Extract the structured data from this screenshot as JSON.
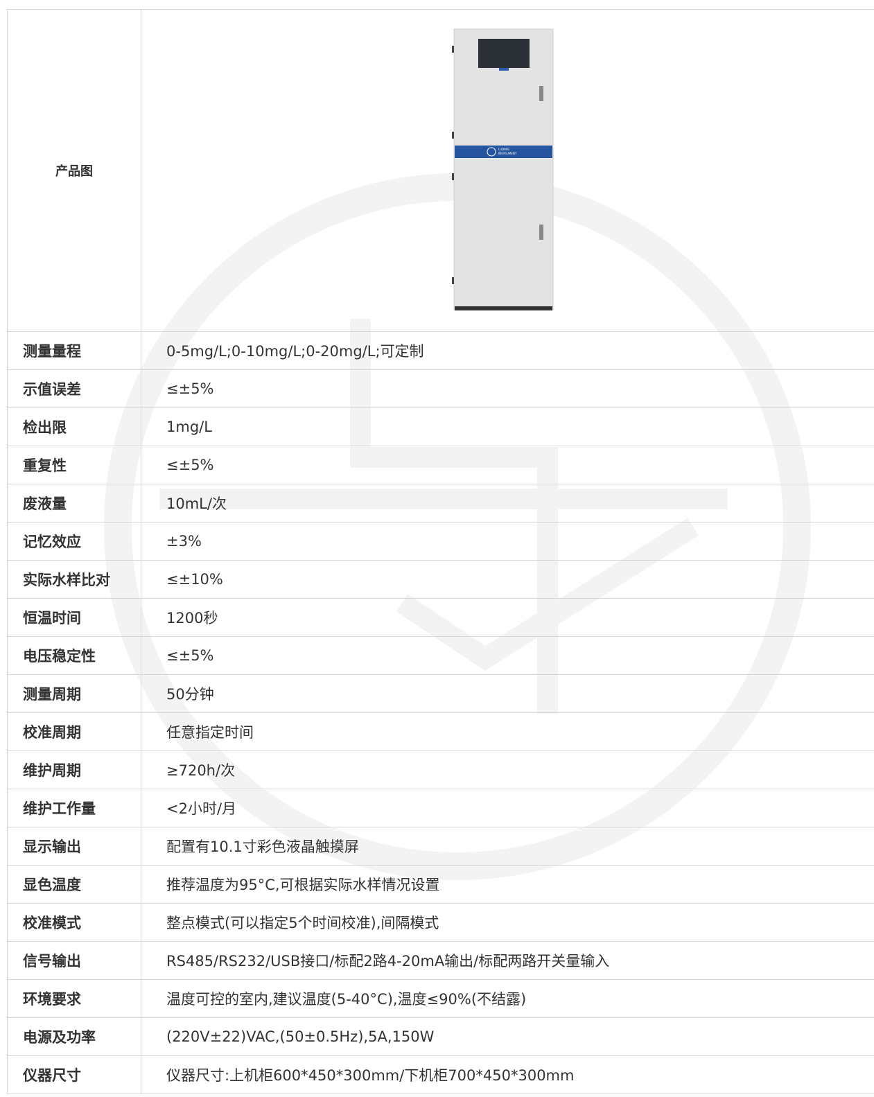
{
  "table": {
    "image_label": "产品图",
    "logo_text": [
      "LUDWIG",
      "INSTRUMENT"
    ],
    "rows": [
      [
        "测量量程",
        "0-5mg/L;0-10mg/L;0-20mg/L;可定制"
      ],
      [
        "示值误差",
        "≤±5%"
      ],
      [
        "检出限",
        "1mg/L"
      ],
      [
        "重复性",
        "≤±5%"
      ],
      [
        "废液量",
        "10mL/次"
      ],
      [
        "记忆效应",
        "±3%"
      ],
      [
        "实际水样比对",
        "≤±10%"
      ],
      [
        "恒温时间",
        "1200秒"
      ],
      [
        "电压稳定性",
        "≤±5%"
      ],
      [
        "测量周期",
        "50分钟"
      ],
      [
        "校准周期",
        "任意指定时间"
      ],
      [
        "维护周期",
        "≥720h/次"
      ],
      [
        "维护工作量",
        "<2小时/月"
      ],
      [
        "显示输出",
        "配置有10.1寸彩色液晶触摸屏"
      ],
      [
        "显色温度",
        "推荐温度为95°C,可根据实际水样情况设置"
      ],
      [
        "校准模式",
        "整点模式(可以指定5个时间校准),间隔模式"
      ],
      [
        "信号输出",
        "RS485/RS232/USB接口/标配2路4-20mA输出/标配两路开关量输入"
      ],
      [
        "环境要求",
        "温度可控的室内,建议温度(5-40°C),温度≤90%(不结露)"
      ],
      [
        "电源及功率",
        "(220V±22)VAC,(50±0.5Hz),5A,150W"
      ],
      [
        "仪器尺寸",
        "仪器尺寸:上机柜600*450*300mm/下机柜700*450*300mm"
      ]
    ]
  }
}
